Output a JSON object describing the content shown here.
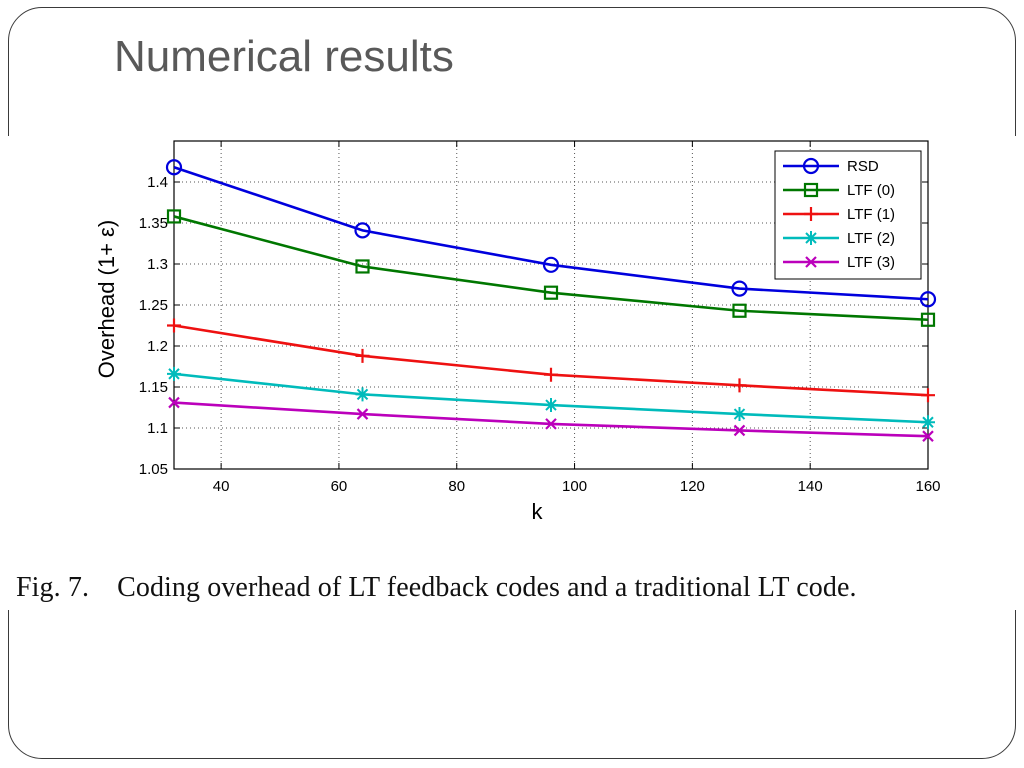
{
  "slide": {
    "title": "Numerical results"
  },
  "caption": {
    "label": "Fig. 7.",
    "text": "Coding overhead of LT feedback codes and a traditional LT code."
  },
  "chart_data": {
    "type": "line",
    "title": "",
    "xlabel": "k",
    "ylabel": "Overhead (1+ ε)",
    "xlim": [
      32,
      160
    ],
    "ylim": [
      1.05,
      1.45
    ],
    "xticks": [
      40,
      60,
      80,
      100,
      120,
      140,
      160
    ],
    "yticks": [
      1.05,
      1.1,
      1.15,
      1.2,
      1.25,
      1.3,
      1.35,
      1.4
    ],
    "ytick_labels": [
      "1.05",
      "1.1",
      "1.15",
      "1.2",
      "1.25",
      "1.3",
      "1.35",
      "1.4"
    ],
    "grid": true,
    "legend_position": "top-right",
    "x": [
      32,
      64,
      96,
      128,
      160
    ],
    "series": [
      {
        "name": "RSD",
        "color": "#0000dd",
        "marker": "circle",
        "values": [
          1.418,
          1.341,
          1.299,
          1.27,
          1.257
        ]
      },
      {
        "name": "LTF (0)",
        "color": "#007700",
        "marker": "square",
        "values": [
          1.358,
          1.297,
          1.265,
          1.243,
          1.232
        ]
      },
      {
        "name": "LTF (1)",
        "color": "#ee1111",
        "marker": "plus",
        "values": [
          1.225,
          1.188,
          1.165,
          1.152,
          1.14
        ]
      },
      {
        "name": "LTF (2)",
        "color": "#00bbbb",
        "marker": "star",
        "values": [
          1.166,
          1.141,
          1.128,
          1.117,
          1.107
        ]
      },
      {
        "name": "LTF (3)",
        "color": "#bb00bb",
        "marker": "x",
        "values": [
          1.131,
          1.117,
          1.105,
          1.097,
          1.09
        ]
      }
    ]
  }
}
